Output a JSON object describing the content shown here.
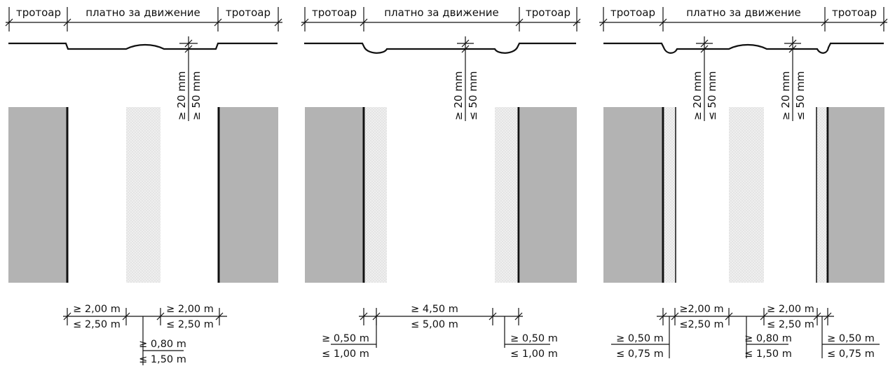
{
  "panels": [
    {
      "labels": {
        "left": "тротоар",
        "center": "платно за движение",
        "right": "тротоар"
      },
      "height_dim": {
        "min": "≥ 20 mm",
        "max": "≥ 50 mm"
      },
      "dims": {
        "top_left": [
          "≥ 2,00 m",
          "≤ 2,50 m"
        ],
        "top_right": [
          "≥ 2,00 m",
          "≤ 2,50 m"
        ],
        "middle": [
          "≥ 0,80 m",
          "≤ 1,50 m"
        ]
      }
    },
    {
      "labels": {
        "left": "тротоар",
        "center": "платно за движение",
        "right": "тротоар"
      },
      "height_dim": {
        "min": "≥ 20 mm",
        "max": "≤ 50 mm"
      },
      "dims": {
        "center": [
          "≥ 4,50 m",
          "≤ 5,00 m"
        ],
        "left": [
          "≥ 0,50 m",
          "≤ 1,00 m"
        ],
        "right": [
          "≥ 0,50 m",
          "≤ 1,00 m"
        ]
      }
    },
    {
      "labels": {
        "left": "тротоар",
        "center": "платно за движение",
        "right": "тротоар"
      },
      "height_dim_1": {
        "min": "≥ 20 mm",
        "max": "≤ 50 mm"
      },
      "height_dim_2": {
        "min": "≥ 20 mm",
        "max": "≤ 50 mm"
      },
      "dims": {
        "top_left": [
          "≥2,00 m",
          "≤2,50 m"
        ],
        "top_right": [
          "≥ 2,00 m",
          "≤ 2,50 m"
        ],
        "middle": [
          "≥ 0,80 m",
          "≤ 1,50 m"
        ],
        "left": [
          "≥ 0,50 m",
          "≤ 0,75 m"
        ],
        "right": [
          "≥ 0,50 m",
          "≤ 0,75 m"
        ]
      }
    }
  ],
  "colors": {
    "sidewalk": "#b3b3b3",
    "paving": "#ececec",
    "line": "#111111"
  }
}
